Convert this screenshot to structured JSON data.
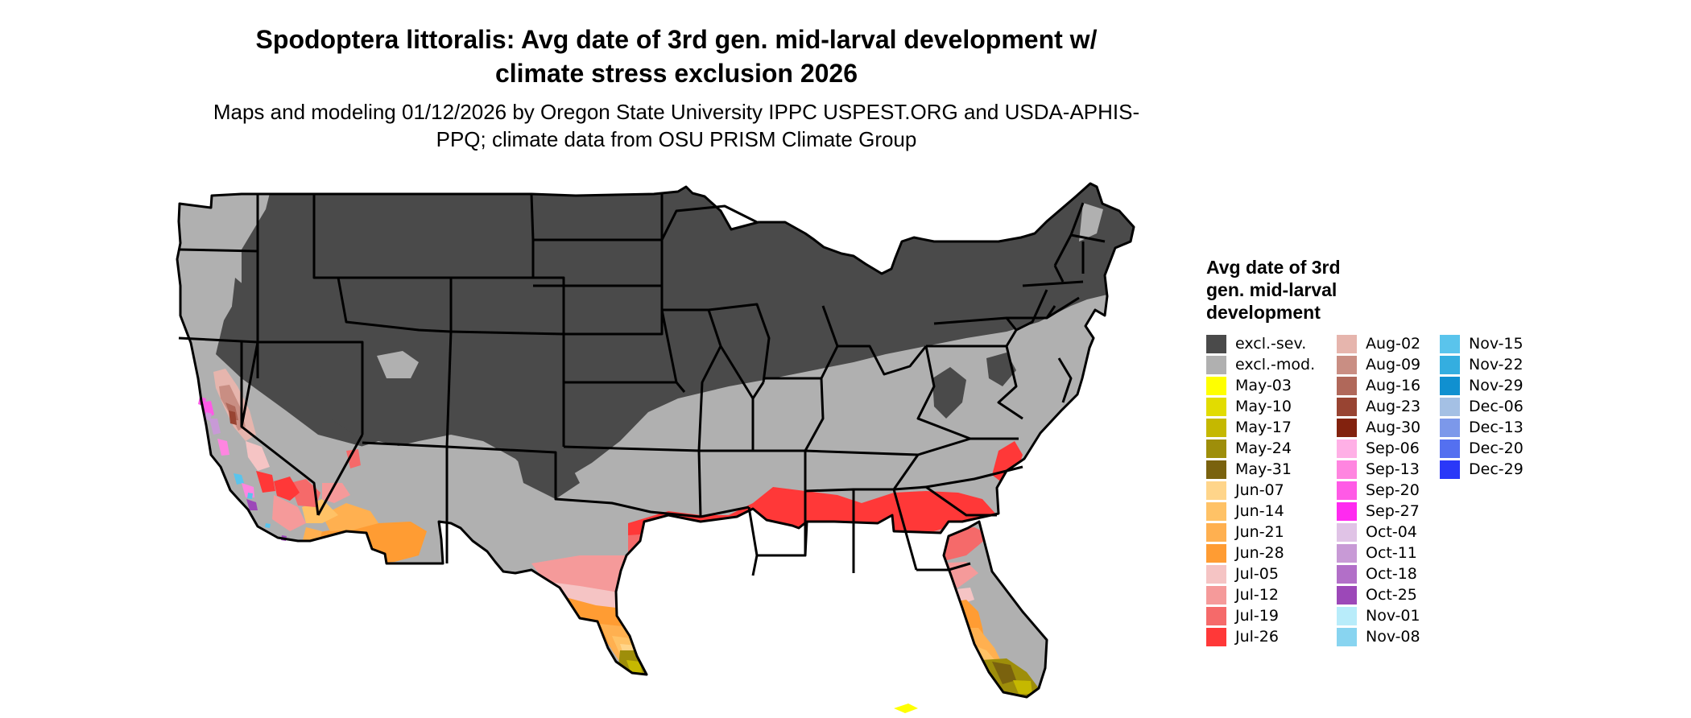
{
  "title": "Spodoptera littoralis: Avg date of 3rd gen. mid-larval development w/ climate stress exclusion 2026",
  "subtitle": "Maps and modeling 01/12/2026 by Oregon State University IPPC USPEST.ORG and USDA-APHIS-PPQ; climate data from OSU PRISM Climate Group",
  "legend": {
    "title": "Avg date of 3rd gen. mid-larval development",
    "columns": [
      [
        {
          "label": "excl.-sev.",
          "color": "#4a4a4a"
        },
        {
          "label": "excl.-mod.",
          "color": "#b0b0b0"
        },
        {
          "label": "May-03",
          "color": "#ffff00"
        },
        {
          "label": "May-10",
          "color": "#e2dc00"
        },
        {
          "label": "May-17",
          "color": "#c5b800"
        },
        {
          "label": "May-24",
          "color": "#9e8e0a"
        },
        {
          "label": "May-31",
          "color": "#7a620e"
        },
        {
          "label": "Jun-07",
          "color": "#ffd58a"
        },
        {
          "label": "Jun-14",
          "color": "#ffc266"
        },
        {
          "label": "Jun-21",
          "color": "#ffb050"
        },
        {
          "label": "Jun-28",
          "color": "#ff9c33"
        },
        {
          "label": "Jul-05",
          "color": "#f5c4c4"
        },
        {
          "label": "Jul-12",
          "color": "#f59a9a"
        },
        {
          "label": "Jul-19",
          "color": "#f56a6a"
        },
        {
          "label": "Jul-26",
          "color": "#ff3838"
        }
      ],
      [
        {
          "label": "Aug-02",
          "color": "#e6b5ad"
        },
        {
          "label": "Aug-09",
          "color": "#c98e83"
        },
        {
          "label": "Aug-16",
          "color": "#b0685a"
        },
        {
          "label": "Aug-23",
          "color": "#984432"
        },
        {
          "label": "Aug-30",
          "color": "#82220e"
        },
        {
          "label": "Sep-06",
          "color": "#ffb0e6"
        },
        {
          "label": "Sep-13",
          "color": "#ff85e0"
        },
        {
          "label": "Sep-20",
          "color": "#ff5ae6"
        },
        {
          "label": "Sep-27",
          "color": "#ff2af0"
        },
        {
          "label": "Oct-04",
          "color": "#e0c3e6"
        },
        {
          "label": "Oct-11",
          "color": "#c89ad6"
        },
        {
          "label": "Oct-18",
          "color": "#b26fc8"
        },
        {
          "label": "Oct-25",
          "color": "#9c48b8"
        },
        {
          "label": "Nov-01",
          "color": "#b8ecfa"
        },
        {
          "label": "Nov-08",
          "color": "#88d4f0"
        }
      ],
      [
        {
          "label": "Nov-15",
          "color": "#5ac4ec"
        },
        {
          "label": "Nov-22",
          "color": "#34aee0"
        },
        {
          "label": "Nov-29",
          "color": "#1090d0"
        },
        {
          "label": "Dec-06",
          "color": "#a4c0e4"
        },
        {
          "label": "Dec-13",
          "color": "#7c98ea"
        },
        {
          "label": "Dec-20",
          "color": "#5470f0"
        },
        {
          "label": "Dec-29",
          "color": "#2a38f8"
        }
      ]
    ]
  }
}
